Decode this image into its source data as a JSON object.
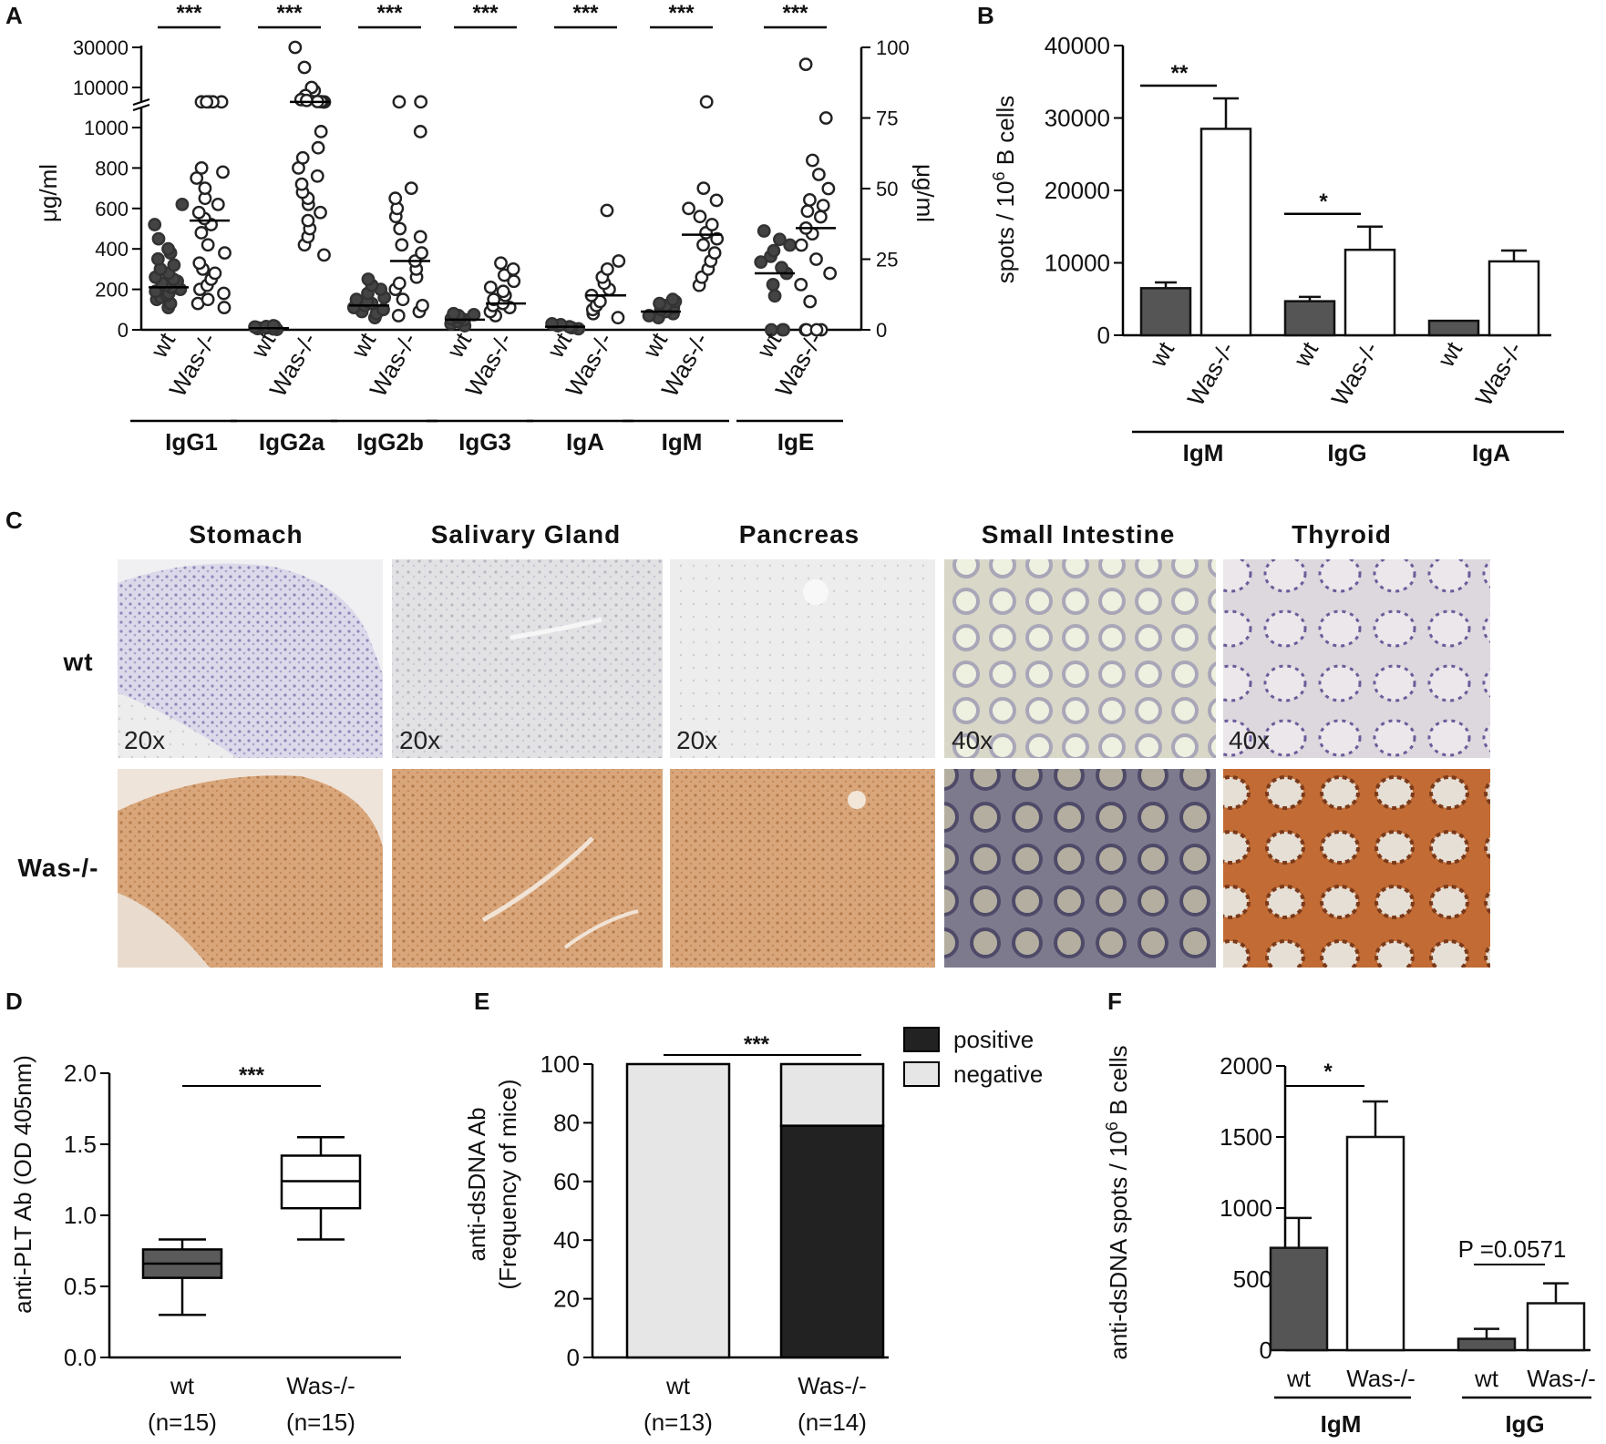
{
  "panel_labels": {
    "A": "A",
    "B": "B",
    "C": "C",
    "D": "D",
    "E": "E",
    "F": "F"
  },
  "chart_data": [
    {
      "panel": "A",
      "type": "scatter",
      "ylabel_left": "μg/ml",
      "ylabel_right": "μg/ml",
      "left_ticks_low": [
        "0",
        "200",
        "400",
        "600",
        "800",
        "1000"
      ],
      "left_ticks_high": [
        "10000",
        "30000"
      ],
      "right_ticks": [
        "0",
        "25",
        "50",
        "75",
        "100"
      ],
      "x_labels": [
        "wt",
        "Was-/-"
      ],
      "groups": [
        {
          "name": "IgG1",
          "significance": "***",
          "axis": "left",
          "wt": [
            110,
            130,
            150,
            160,
            170,
            180,
            190,
            200,
            210,
            220,
            230,
            240,
            250,
            260,
            280,
            300,
            320,
            350,
            380,
            400,
            450,
            520,
            620
          ],
          "ko": [
            110,
            130,
            150,
            180,
            200,
            220,
            250,
            280,
            300,
            330,
            380,
            420,
            480,
            520,
            550,
            580,
            620,
            650,
            700,
            750,
            780,
            800,
            1100,
            1100,
            1100,
            1100,
            1100
          ],
          "wt_mean": 210,
          "ko_mean": 540
        },
        {
          "name": "IgG2a",
          "significance": "***",
          "axis": "left",
          "wt": [
            2,
            4,
            6,
            8,
            10,
            12,
            14,
            16,
            18,
            20
          ],
          "ko": [
            370,
            420,
            460,
            500,
            540,
            580,
            620,
            650,
            680,
            720,
            760,
            800,
            850,
            900,
            980,
            1030,
            1080,
            1200,
            1300
          ],
          "ko_hi": [
            8000,
            10000,
            30000,
            20000,
            5000,
            2500,
            2000
          ],
          "wt_mean": 8,
          "ko_mean": 1100
        },
        {
          "name": "IgG2b",
          "significance": "***",
          "axis": "left",
          "wt": [
            60,
            80,
            90,
            100,
            110,
            120,
            130,
            140,
            150,
            160,
            180,
            200,
            220,
            250
          ],
          "ko": [
            70,
            90,
            120,
            150,
            200,
            230,
            260,
            300,
            340,
            380,
            420,
            460,
            500,
            560,
            600,
            650,
            700,
            980,
            1100,
            1100
          ],
          "wt_mean": 120,
          "ko_mean": 340
        },
        {
          "name": "IgG3",
          "significance": "***",
          "axis": "left",
          "wt": [
            20,
            30,
            40,
            50,
            55,
            60,
            65,
            70,
            75,
            80
          ],
          "ko": [
            70,
            90,
            110,
            120,
            130,
            150,
            170,
            190,
            210,
            240,
            270,
            300,
            330
          ],
          "wt_mean": 50,
          "ko_mean": 130
        },
        {
          "name": "IgA",
          "significance": "***",
          "axis": "left",
          "wt": [
            5,
            10,
            15,
            20,
            25,
            30
          ],
          "ko": [
            60,
            80,
            100,
            120,
            140,
            170,
            200,
            230,
            260,
            300,
            340,
            590
          ],
          "wt_mean": 15,
          "ko_mean": 170
        },
        {
          "name": "IgM",
          "significance": "***",
          "axis": "left",
          "wt": [
            60,
            70,
            80,
            90,
            100,
            110,
            120,
            130,
            140,
            150
          ],
          "ko": [
            220,
            260,
            300,
            340,
            380,
            420,
            450,
            480,
            520,
            560,
            600,
            640,
            700,
            1100
          ],
          "wt_mean": 90,
          "ko_mean": 470
        },
        {
          "name": "IgE",
          "significance": "***",
          "axis": "right",
          "wt": [
            0,
            0,
            0,
            12,
            16,
            20,
            22,
            24,
            26,
            28,
            30,
            32,
            35
          ],
          "ko": [
            0,
            0,
            0,
            0,
            10,
            16,
            20,
            25,
            30,
            34,
            36,
            40,
            42,
            44,
            46,
            50,
            55,
            60,
            75,
            94
          ],
          "wt_mean": 20,
          "ko_mean": 36
        }
      ]
    },
    {
      "panel": "B",
      "type": "bar",
      "ylabel": "spots / 10",
      "ylabel_sup": "6",
      "ylabel_tail": " B cells",
      "ylim": [
        0,
        40000
      ],
      "yticks": [
        "0",
        "10000",
        "20000",
        "30000",
        "40000"
      ],
      "groups": [
        {
          "name": "IgM",
          "wt": 6500,
          "wt_err": 800,
          "ko": 28500,
          "ko_err": 4200,
          "significance": "**"
        },
        {
          "name": "IgG",
          "wt": 4700,
          "wt_err": 600,
          "ko": 11800,
          "ko_err": 3200,
          "significance": "*"
        },
        {
          "name": "IgA",
          "wt": 2000,
          "wt_err": 0,
          "ko": 10200,
          "ko_err": 1500,
          "significance": ""
        }
      ],
      "x_labels": [
        "wt",
        "Was-/-"
      ]
    },
    {
      "panel": "D",
      "type": "box",
      "ylabel": "anti-PLT Ab (OD 405nm)",
      "ylim": [
        0,
        2.0
      ],
      "yticks": [
        "0.0",
        "0.5",
        "1.0",
        "1.5",
        "2.0"
      ],
      "boxes": [
        {
          "label": "wt",
          "n": "(n=15)",
          "min": 0.3,
          "q1": 0.56,
          "median": 0.66,
          "q3": 0.76,
          "max": 0.83
        },
        {
          "label": "Was-/-",
          "n": "(n=15)",
          "min": 0.83,
          "q1": 1.05,
          "median": 1.24,
          "q3": 1.42,
          "max": 1.55
        }
      ],
      "significance": "***"
    },
    {
      "panel": "E",
      "type": "bar",
      "ylabel_line1": "anti-dsDNA Ab",
      "ylabel_line2": "(Frequency of mice)",
      "ylim": [
        0,
        100
      ],
      "yticks": [
        "0",
        "20",
        "40",
        "60",
        "80",
        "100"
      ],
      "categories": [
        {
          "label": "wt",
          "n": "(n=13)",
          "positive": 0,
          "negative": 100
        },
        {
          "label": "Was-/-",
          "n": "(n=14)",
          "positive": 79,
          "negative": 21
        }
      ],
      "legend": [
        "positive",
        "negative"
      ],
      "significance": "***"
    },
    {
      "panel": "F",
      "type": "bar",
      "ylabel": "anti-dsDNA spots / 10",
      "ylabel_sup": "6",
      "ylabel_tail": " B cells",
      "ylim": [
        0,
        2000
      ],
      "yticks": [
        "0",
        "500",
        "1000",
        "1500",
        "2000"
      ],
      "groups": [
        {
          "name": "IgM",
          "wt": 720,
          "wt_err": 210,
          "ko": 1500,
          "ko_err": 250,
          "significance": "*"
        },
        {
          "name": "IgG",
          "wt": 80,
          "wt_err": 70,
          "ko": 330,
          "ko_err": 140,
          "significance": "P =0.0571"
        }
      ],
      "x_labels": [
        "wt",
        "Was-/-"
      ]
    }
  ],
  "histology": {
    "columns": [
      "Stomach",
      "Salivary Gland",
      "Pancreas",
      "Small Intestine",
      "Thyroid"
    ],
    "rows": [
      "wt",
      "Was-/-"
    ],
    "magnifications": [
      "20x",
      "20x",
      "20x",
      "40x",
      "40x"
    ]
  },
  "colors": {
    "wt_fill": "#555555",
    "ko_fill": "#ffffff",
    "positive": "#222222",
    "negative": "#e6e6e6",
    "box_wt": "#5a5a5a"
  }
}
